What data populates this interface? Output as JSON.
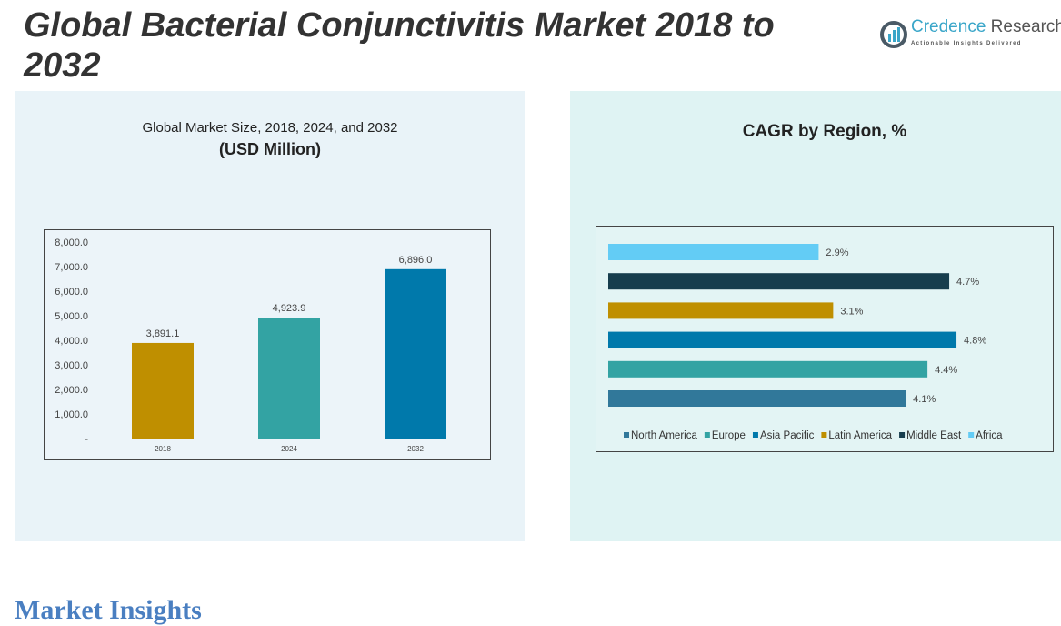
{
  "header": {
    "title": "Global Bacterial Conjunctivitis Market 2018 to 2032"
  },
  "logo": {
    "name_part1": "Credence",
    "name_part2": " Research",
    "tagline": "Actionable Insights Delivered"
  },
  "footer": {
    "heading": "Market Insights"
  },
  "chart_data": [
    {
      "type": "bar",
      "title": "Global Market Size, 2018, 2024, and 2032",
      "subtitle": "(USD Million)",
      "categories": [
        "2018",
        "2024",
        "2032"
      ],
      "values": [
        3891.1,
        4923.9,
        6896.0
      ],
      "value_labels": [
        "3,891.1",
        "4,923.9",
        "6,896.0"
      ],
      "color": [
        "#bf8f00",
        "#33a3a3",
        "#0079ab"
      ],
      "ylim": [
        0,
        8000
      ],
      "yticks": [
        "-",
        "1,000.0",
        "2,000.0",
        "3,000.0",
        "4,000.0",
        "5,000.0",
        "6,000.0",
        "7,000.0",
        "8,000.0"
      ],
      "grid": false
    },
    {
      "type": "bar",
      "orientation": "horizontal",
      "title": "CAGR by Region, %",
      "categories": [
        "North America",
        "Europe",
        "Asia Pacific",
        "Latin America",
        "Middle East",
        "Africa"
      ],
      "values": [
        4.1,
        4.4,
        4.8,
        3.1,
        4.7,
        2.9
      ],
      "value_labels": [
        "4.1%",
        "4.4%",
        "4.8%",
        "3.1%",
        "4.7%",
        "2.9%"
      ],
      "colors": [
        "#31789a",
        "#33a3a3",
        "#0079ab",
        "#bf8f00",
        "#173d4d",
        "#63ccf5"
      ],
      "legend": "bottom",
      "unit": "%"
    }
  ]
}
